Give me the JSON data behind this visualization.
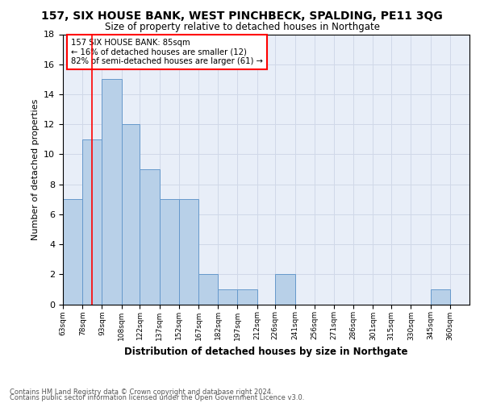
{
  "title": "157, SIX HOUSE BANK, WEST PINCHBECK, SPALDING, PE11 3QG",
  "subtitle": "Size of property relative to detached houses in Northgate",
  "xlabel": "Distribution of detached houses by size in Northgate",
  "ylabel": "Number of detached properties",
  "bin_labels": [
    "63sqm",
    "78sqm",
    "93sqm",
    "108sqm",
    "122sqm",
    "137sqm",
    "152sqm",
    "167sqm",
    "182sqm",
    "197sqm",
    "212sqm",
    "226sqm",
    "241sqm",
    "256sqm",
    "271sqm",
    "286sqm",
    "301sqm",
    "315sqm",
    "330sqm",
    "345sqm",
    "360sqm"
  ],
  "bin_edges": [
    63,
    78,
    93,
    108,
    122,
    137,
    152,
    167,
    182,
    197,
    212,
    226,
    241,
    256,
    271,
    286,
    301,
    315,
    330,
    345,
    360,
    375
  ],
  "counts": [
    7,
    11,
    15,
    12,
    9,
    7,
    7,
    2,
    1,
    1,
    0,
    2,
    0,
    0,
    0,
    0,
    0,
    0,
    0,
    1,
    0
  ],
  "bar_color": "#b8d0e8",
  "bar_edge_color": "#6699cc",
  "property_line_x": 85,
  "property_line_color": "red",
  "annotation_line1": "157 SIX HOUSE BANK: 85sqm",
  "annotation_line2": "← 16% of detached houses are smaller (12)",
  "annotation_line3": "82% of semi-detached houses are larger (61) →",
  "ylim": [
    0,
    18
  ],
  "yticks": [
    0,
    2,
    4,
    6,
    8,
    10,
    12,
    14,
    16,
    18
  ],
  "grid_color": "#d0d8e8",
  "background_color": "#e8eef8",
  "footer_line1": "Contains HM Land Registry data © Crown copyright and database right 2024.",
  "footer_line2": "Contains public sector information licensed under the Open Government Licence v3.0."
}
